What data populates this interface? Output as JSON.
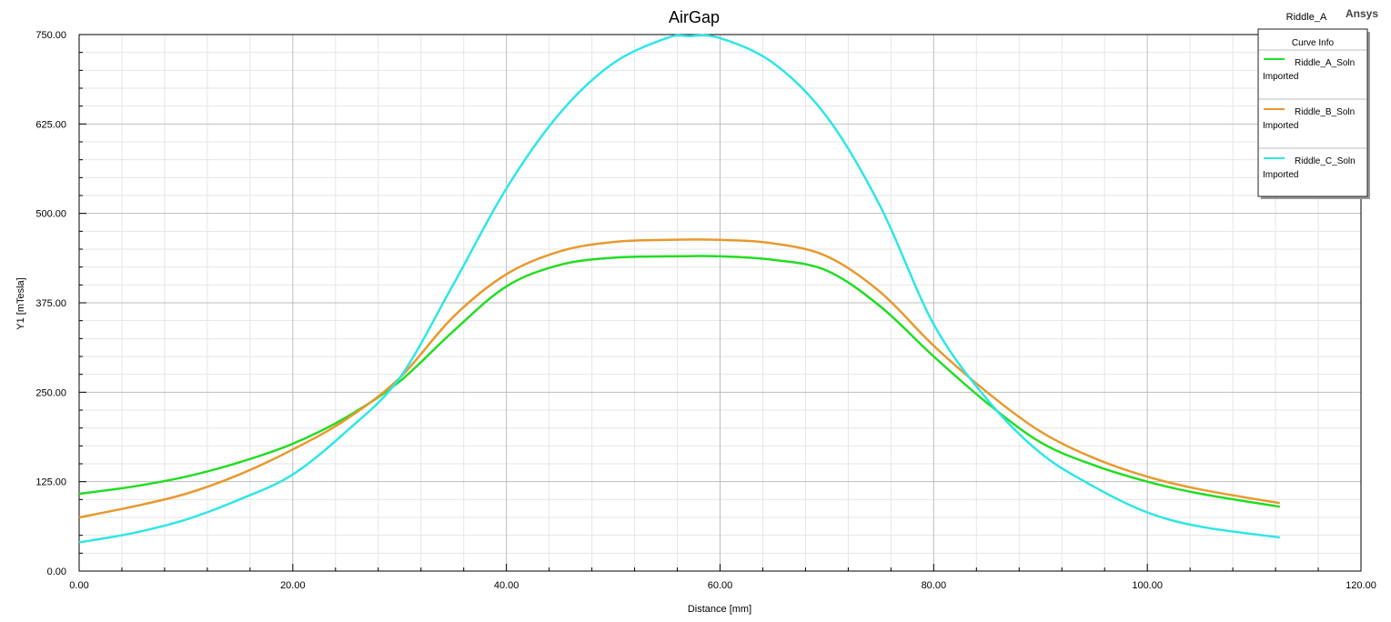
{
  "header": {
    "design_name": "Riddle_A",
    "brand": "Ansys"
  },
  "legend": {
    "title": "Curve Info",
    "items": [
      {
        "name": "Riddle_A_Soln",
        "sub": "Imported",
        "color": "#22dd22"
      },
      {
        "name": "Riddle_B_Soln",
        "sub": "Imported",
        "color": "#e8992e"
      },
      {
        "name": "Riddle_C_Soln",
        "sub": "Imported",
        "color": "#2ee6e6"
      }
    ]
  },
  "chart_data": {
    "type": "line",
    "title": "AirGap",
    "xlabel": "Distance [mm]",
    "ylabel": "Y1 [mTesla]",
    "xlim": [
      0,
      120
    ],
    "ylim": [
      0,
      750
    ],
    "x_ticks": [
      "0.00",
      "20.00",
      "40.00",
      "60.00",
      "80.00",
      "100.00",
      "120.00"
    ],
    "y_ticks": [
      "0.00",
      "125.00",
      "250.00",
      "375.00",
      "500.00",
      "625.00",
      "750.00"
    ],
    "grid": true,
    "legend_position": "top-right",
    "series": [
      {
        "name": "Riddle_A_Soln",
        "color": "#22dd22",
        "x": [
          0,
          5,
          10,
          15,
          20,
          25,
          30,
          35,
          40,
          45,
          50,
          55,
          60,
          65,
          70,
          75,
          80,
          85,
          90,
          95,
          100,
          105,
          112.4
        ],
        "y": [
          108,
          118,
          132,
          152,
          178,
          215,
          265,
          335,
          398,
          428,
          438,
          440,
          440,
          435,
          420,
          370,
          300,
          235,
          180,
          148,
          125,
          108,
          90
        ]
      },
      {
        "name": "Riddle_B_Soln",
        "color": "#e8992e",
        "x": [
          0,
          5,
          10,
          15,
          20,
          25,
          30,
          35,
          40,
          45,
          50,
          55,
          60,
          65,
          70,
          75,
          80,
          85,
          90,
          95,
          100,
          105,
          112.4
        ],
        "y": [
          75,
          90,
          108,
          135,
          170,
          212,
          270,
          355,
          415,
          447,
          460,
          463,
          463,
          458,
          440,
          390,
          315,
          250,
          195,
          158,
          132,
          114,
          95
        ]
      },
      {
        "name": "Riddle_C_Soln",
        "color": "#2ee6e6",
        "x": [
          0,
          5,
          10,
          15,
          20,
          25,
          30,
          35,
          40,
          45,
          50,
          55,
          57,
          60,
          65,
          70,
          75,
          80,
          85,
          90,
          95,
          100,
          105,
          112.4
        ],
        "y": [
          40,
          53,
          72,
          100,
          135,
          195,
          270,
          400,
          535,
          640,
          710,
          745,
          748,
          745,
          710,
          635,
          510,
          345,
          240,
          165,
          118,
          82,
          62,
          47
        ]
      }
    ]
  }
}
